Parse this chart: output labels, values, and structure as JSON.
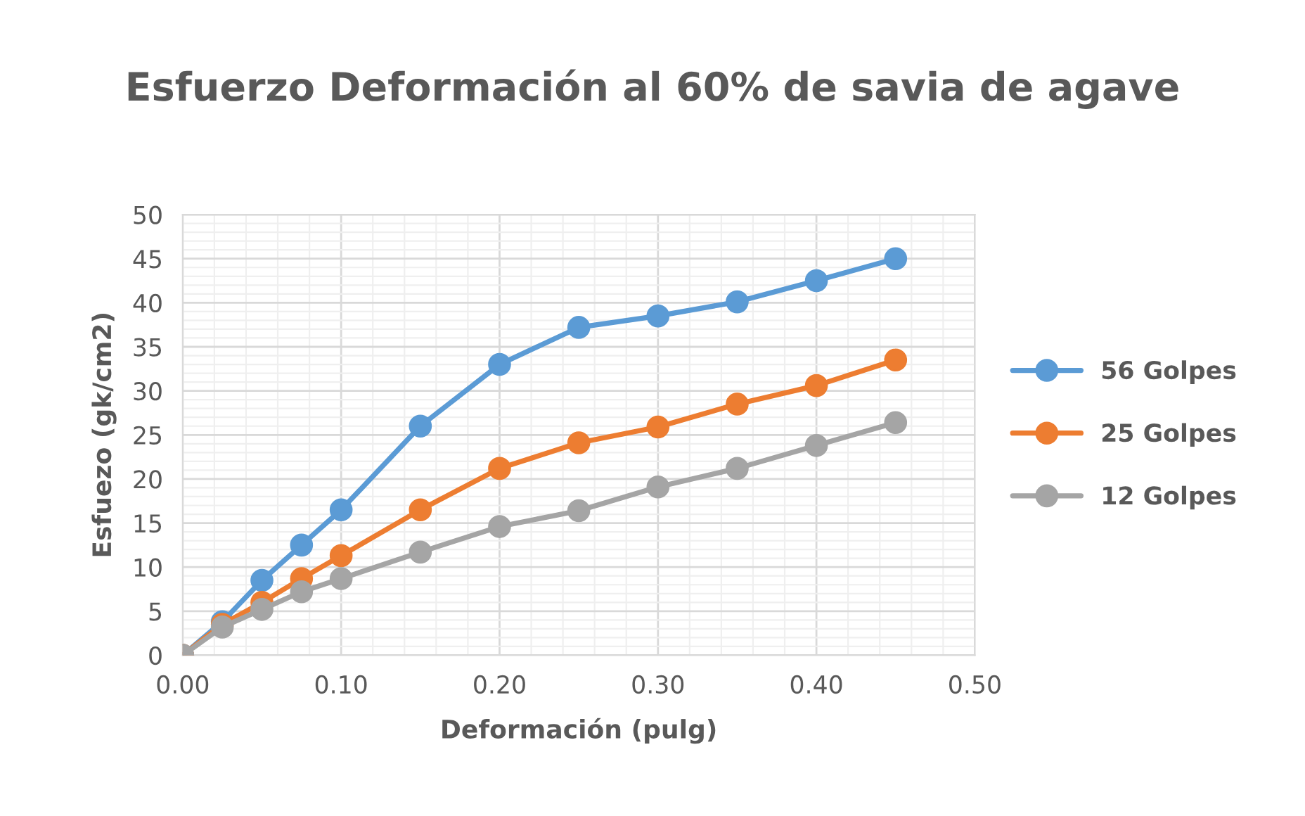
{
  "chart_data": {
    "type": "line",
    "title": "Esfuerzo Deformación al 60% de savia de agave",
    "xlabel": "Deformación (pulg)",
    "ylabel": "Esfuezo (gk/cm2)",
    "x": [
      0,
      0.025,
      0.05,
      0.075,
      0.1,
      0.15,
      0.2,
      0.25,
      0.3,
      0.35,
      0.4,
      0.45
    ],
    "series": [
      {
        "name": "56 Golpes",
        "color": "#5b9bd5",
        "values": [
          0,
          3.8,
          8.5,
          12.5,
          16.5,
          26,
          33,
          37.2,
          38.5,
          40.1,
          42.5,
          45
        ]
      },
      {
        "name": "25 Golpes",
        "color": "#ed7d31",
        "values": [
          0,
          3.5,
          6,
          8.7,
          11.3,
          16.5,
          21.2,
          24.1,
          25.9,
          28.5,
          30.6,
          33.5
        ]
      },
      {
        "name": "12 Golpes",
        "color": "#a5a5a5",
        "values": [
          0,
          3.2,
          5.2,
          7.2,
          8.7,
          11.7,
          14.6,
          16.4,
          19.1,
          21.2,
          23.8,
          26.4
        ]
      }
    ],
    "xlim": [
      0,
      0.5
    ],
    "xticks": [
      {
        "value": 0,
        "label": "0.00"
      },
      {
        "value": 0.1,
        "label": "0.10"
      },
      {
        "value": 0.2,
        "label": "0.20"
      },
      {
        "value": 0.3,
        "label": "0.30"
      },
      {
        "value": 0.4,
        "label": "0.40"
      },
      {
        "value": 0.5,
        "label": "0.50"
      }
    ],
    "ylim": [
      0,
      50
    ],
    "yticks": [
      0,
      5,
      10,
      15,
      20,
      25,
      30,
      35,
      40,
      45,
      50
    ],
    "grid": true,
    "legend": "right",
    "marker": "circle",
    "line_style": "solid"
  }
}
